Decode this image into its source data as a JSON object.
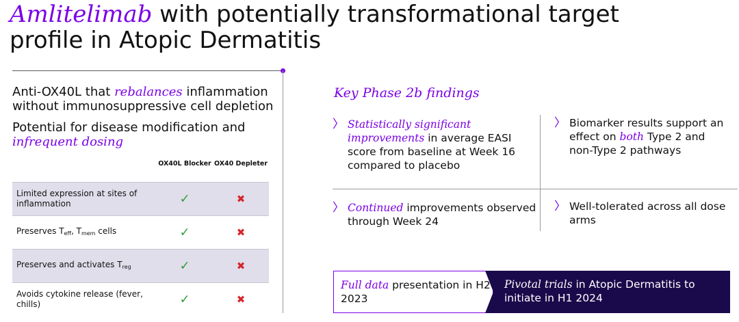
{
  "title": {
    "brand": "Amlitelimab",
    "rest_line1": " with potentially transformational target",
    "line2": "profile in Atopic Dermatitis"
  },
  "left": {
    "p1_a": "Anti-OX40L that ",
    "p1_em": "rebalances",
    "p1_b": " inflammation without immunosuppressive cell depletion",
    "p2_a": "Potential for disease modification and ",
    "p2_em": "infrequent dosing"
  },
  "table": {
    "col1_header": "OX40L Blocker",
    "col2_header": "OX40 Depleter",
    "check": "✓",
    "cross": "✖",
    "rows": [
      {
        "label": "Limited expression at sites of inflammation"
      },
      {
        "label_a": "Preserves T",
        "sub1": "eff",
        "label_b": ", T",
        "sub2": "mem",
        "label_c": " cells"
      },
      {
        "label_a": "Preserves and activates T",
        "sub1": "reg"
      },
      {
        "label": "Avoids cytokine release (fever, chills)"
      }
    ]
  },
  "findings": {
    "heading": "Key Phase 2b  findings",
    "chevron": "〉",
    "f1_em": "Statistically significant improvements",
    "f1_rest": " in average EASI score from baseline at Week 16 compared to placebo",
    "f2_a": "Biomarker results support an effect on ",
    "f2_em": "both",
    "f2_b": " Type 2 and non-Type 2 pathways",
    "f3_em": "Continued",
    "f3_rest": " improvements observed through Week 24",
    "f4": "Well-tolerated across all dose arms"
  },
  "bottom": {
    "left_em": "Full data",
    "left_rest": " presentation in H2 2023",
    "right_em": "Pivotal trials",
    "right_rest": " in Atopic Dermatitis to initiate in H1 2024"
  },
  "colors": {
    "accent": "#7a00e6",
    "dark_panel": "#1b0a4b",
    "check": "#2e9e3e",
    "cross": "#d7262c",
    "row_shade": "#e0deea"
  }
}
